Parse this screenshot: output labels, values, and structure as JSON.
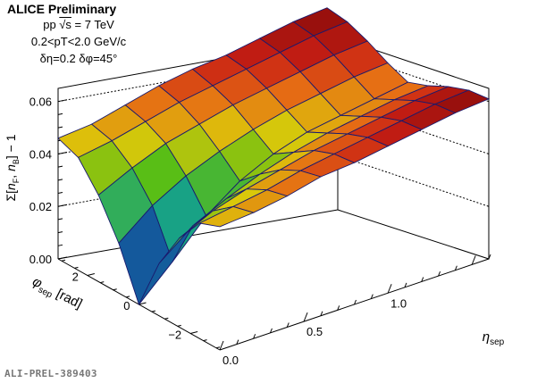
{
  "header": {
    "title": "ALICE Preliminary",
    "system_prefix": "pp ",
    "system_sqrt": "√s",
    "system_suffix": " = 7 TeV",
    "pt_range": "0.2<pT<2.0 GeV/c",
    "binning": "δη=0.2 δφ=45°"
  },
  "footer": {
    "label": "ALI-PREL-389403"
  },
  "chart_data": {
    "type": "surface",
    "title": "ALICE Preliminary",
    "zlabel": "Σ[nF, nB] − 1",
    "xlabel": "ηsep",
    "ylabel": "φsep [rad]",
    "zlim": [
      0,
      0.065
    ],
    "xlim": [
      0,
      1.6
    ],
    "ylim": [
      -3.14,
      3.14
    ],
    "z_ticks": [
      "0.00",
      "0.02",
      "0.04",
      "0.06"
    ],
    "x_ticks": [
      "0.0",
      "0.5",
      "1.0"
    ],
    "y_ticks": [
      "2",
      "0",
      "−2"
    ],
    "eta_sep": [
      0.0,
      0.2,
      0.4,
      0.6,
      0.8,
      1.0,
      1.2,
      1.4,
      1.6
    ],
    "phi_sep_deg": [
      -180,
      -135,
      -90,
      -45,
      0,
      45,
      90,
      135,
      180
    ],
    "values": [
      [
        0.047,
        0.048,
        0.05,
        0.053,
        0.054,
        0.056,
        0.058,
        0.06,
        0.061
      ],
      [
        0.044,
        0.046,
        0.048,
        0.051,
        0.053,
        0.055,
        0.057,
        0.059,
        0.06
      ],
      [
        0.034,
        0.04,
        0.044,
        0.047,
        0.05,
        0.052,
        0.054,
        0.056,
        0.057
      ],
      [
        0.02,
        0.03,
        0.036,
        0.041,
        0.045,
        0.048,
        0.05,
        0.052,
        0.053
      ],
      [
        0.0,
        0.012,
        0.025,
        0.034,
        0.04,
        0.044,
        0.046,
        0.048,
        0.05
      ],
      [
        0.019,
        0.029,
        0.036,
        0.041,
        0.045,
        0.048,
        0.05,
        0.052,
        0.053
      ],
      [
        0.033,
        0.039,
        0.044,
        0.047,
        0.05,
        0.052,
        0.054,
        0.056,
        0.057
      ],
      [
        0.043,
        0.045,
        0.048,
        0.051,
        0.053,
        0.055,
        0.057,
        0.059,
        0.06
      ],
      [
        0.046,
        0.047,
        0.05,
        0.053,
        0.055,
        0.056,
        0.058,
        0.06,
        0.061
      ]
    ]
  }
}
